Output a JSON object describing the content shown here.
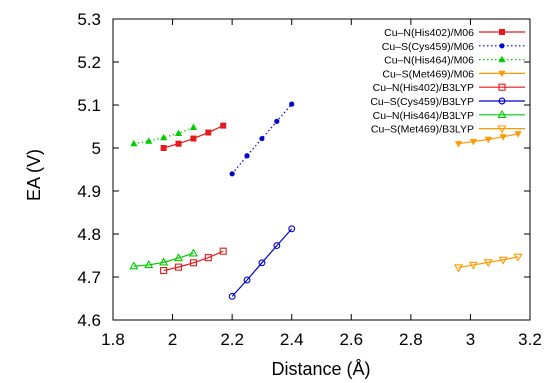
{
  "chart_data": {
    "type": "line",
    "title": "",
    "xlabel": "Distance (Å)",
    "ylabel": "EA (V)",
    "xlim": [
      1.8,
      3.2
    ],
    "ylim": [
      4.6,
      5.3
    ],
    "xticks": [
      "1.8",
      "2",
      "2.2",
      "2.4",
      "2.6",
      "2.8",
      "3",
      "3.2"
    ],
    "yticks": [
      "4.6",
      "4.7",
      "4.8",
      "4.9",
      "5",
      "5.1",
      "5.2",
      "5.3"
    ],
    "legend_position": "top-right",
    "grid": false,
    "series": [
      {
        "name": "Cu–N(His402)/M06",
        "color": "#e41a1c",
        "line": "solid",
        "marker": "filled-square",
        "x": [
          1.97,
          2.02,
          2.07,
          2.12,
          2.17
        ],
        "y": [
          5.0,
          5.01,
          5.022,
          5.036,
          5.052
        ]
      },
      {
        "name": "Cu–S(Cys459)/M06",
        "color": "#0000cc",
        "line": "dotted",
        "marker": "filled-circle",
        "x": [
          2.2,
          2.25,
          2.3,
          2.35,
          2.4
        ],
        "y": [
          4.94,
          4.982,
          5.022,
          5.062,
          5.102
        ]
      },
      {
        "name": "Cu–N(His464)/M06",
        "color": "#00cc00",
        "line": "dotted",
        "marker": "filled-triangle-up",
        "x": [
          1.87,
          1.92,
          1.97,
          2.02,
          2.07
        ],
        "y": [
          5.01,
          5.016,
          5.024,
          5.034,
          5.048
        ]
      },
      {
        "name": "Cu–S(Met469)/M06",
        "color": "#ff9900",
        "line": "solid",
        "marker": "filled-triangle-down",
        "x": [
          2.96,
          3.01,
          3.06,
          3.11,
          3.16
        ],
        "y": [
          5.01,
          5.015,
          5.02,
          5.026,
          5.033
        ]
      },
      {
        "name": "Cu–N(His402)/B3LYP",
        "color": "#e41a1c",
        "line": "solid",
        "marker": "open-square",
        "x": [
          1.97,
          2.02,
          2.07,
          2.12,
          2.17
        ],
        "y": [
          4.715,
          4.723,
          4.733,
          4.745,
          4.76
        ]
      },
      {
        "name": "Cu–S(Cys459)/B3LYP",
        "color": "#0000cc",
        "line": "solid",
        "marker": "open-circle",
        "x": [
          2.2,
          2.25,
          2.3,
          2.35,
          2.4
        ],
        "y": [
          4.655,
          4.693,
          4.733,
          4.773,
          4.812
        ]
      },
      {
        "name": "Cu–N(His464)/B3LYP",
        "color": "#00cc00",
        "line": "solid",
        "marker": "open-triangle-up",
        "x": [
          1.87,
          1.92,
          1.97,
          2.02,
          2.07
        ],
        "y": [
          4.725,
          4.728,
          4.734,
          4.744,
          4.755
        ]
      },
      {
        "name": "Cu–S(Met469)/B3LYP",
        "color": "#ff9900",
        "line": "solid",
        "marker": "open-triangle-down",
        "x": [
          2.96,
          3.01,
          3.06,
          3.11,
          3.16
        ],
        "y": [
          4.722,
          4.728,
          4.734,
          4.74,
          4.747
        ]
      }
    ]
  }
}
